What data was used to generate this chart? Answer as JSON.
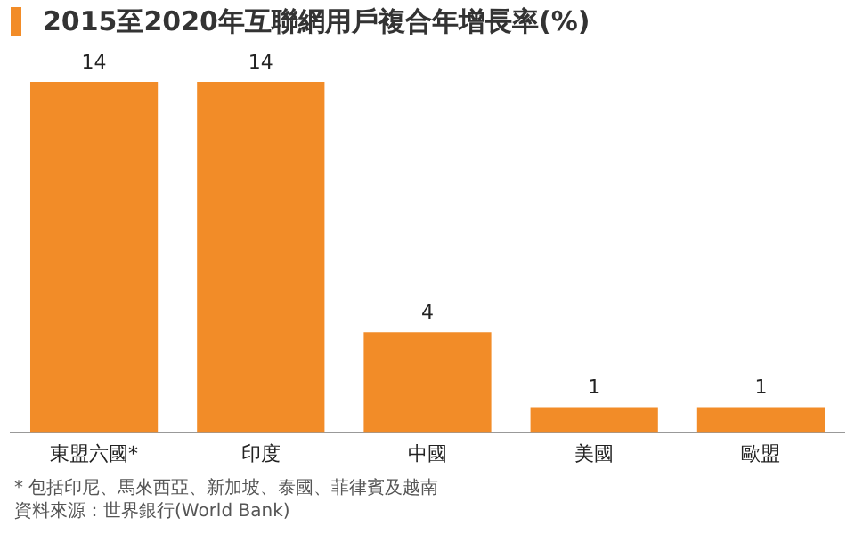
{
  "chart_data": {
    "type": "bar",
    "title": "2015至2020年互聯網用戶複合年增長率(%)",
    "categories": [
      "東盟六國*",
      "印度",
      "中國",
      "美國",
      "歐盟"
    ],
    "values": [
      14,
      14,
      4,
      1,
      1
    ],
    "color": "#f28c28",
    "data_labels": true,
    "grid": false,
    "legend": false,
    "annotations": [
      "* 包括印尼、馬來西亞、新加坡、泰國、菲律賓及越南",
      "資料來源：世界銀行(World Bank)"
    ]
  }
}
